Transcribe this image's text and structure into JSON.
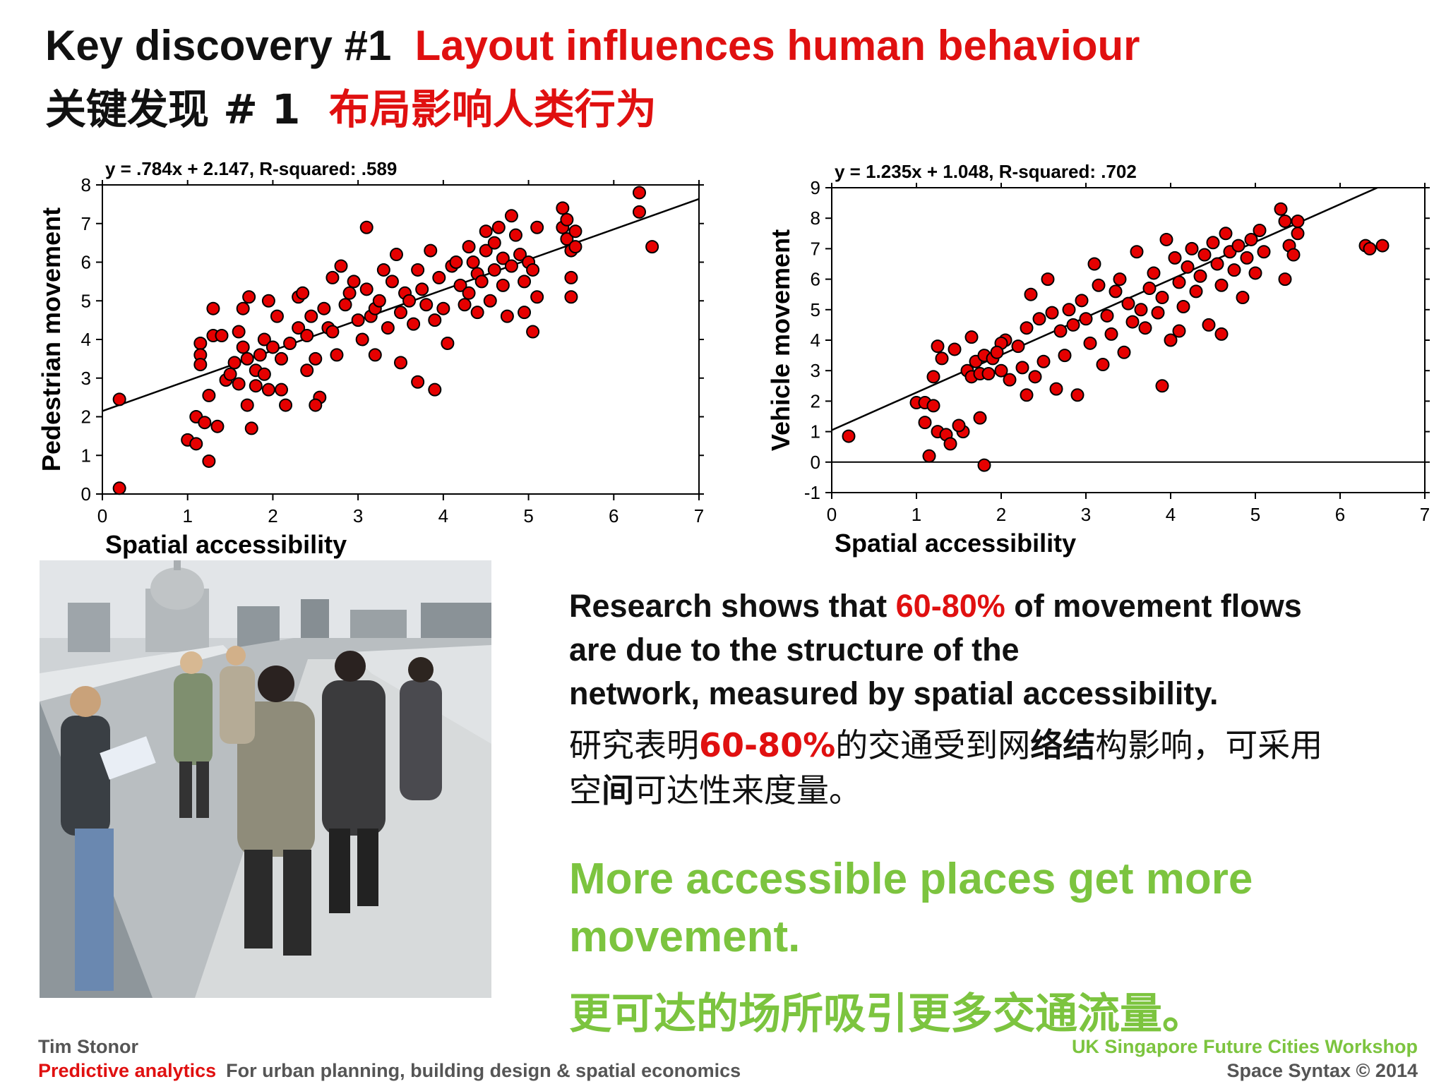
{
  "title": {
    "en_prefix": "Key discovery #1",
    "en_highlight": "Layout influences human behaviour",
    "zh_prefix": "关键发现 # 1",
    "zh_highlight": "布局影响人类行为"
  },
  "colors": {
    "accent_red": "#e01010",
    "accent_green": "#7cc43f",
    "marker_fill": "#e60000",
    "marker_edge": "#000000"
  },
  "chart_data": [
    {
      "type": "scatter",
      "title": "y = .784x + 2.147, R-squared: .589",
      "xlabel": "Spatial accessibility",
      "ylabel": "Pedestrian movement",
      "xlim": [
        0,
        7
      ],
      "ylim": [
        0,
        8
      ],
      "xticks": [
        0,
        1,
        2,
        3,
        4,
        5,
        6,
        7
      ],
      "yticks": [
        0,
        1,
        2,
        3,
        4,
        5,
        6,
        7,
        8
      ],
      "fit": {
        "slope": 0.784,
        "intercept": 2.147
      },
      "points": [
        [
          0.2,
          2.45
        ],
        [
          0.2,
          0.15
        ],
        [
          1.0,
          1.4
        ],
        [
          1.1,
          2.0
        ],
        [
          1.1,
          1.3
        ],
        [
          1.15,
          3.9
        ],
        [
          1.15,
          3.6
        ],
        [
          1.15,
          3.35
        ],
        [
          1.2,
          1.85
        ],
        [
          1.25,
          2.55
        ],
        [
          1.25,
          0.85
        ],
        [
          1.3,
          4.1
        ],
        [
          1.3,
          4.8
        ],
        [
          1.35,
          1.75
        ],
        [
          1.4,
          4.1
        ],
        [
          1.45,
          2.95
        ],
        [
          1.5,
          3.1
        ],
        [
          1.55,
          3.4
        ],
        [
          1.6,
          4.2
        ],
        [
          1.6,
          2.85
        ],
        [
          1.65,
          3.8
        ],
        [
          1.65,
          4.8
        ],
        [
          1.7,
          2.3
        ],
        [
          1.7,
          3.5
        ],
        [
          1.72,
          5.1
        ],
        [
          1.75,
          1.7
        ],
        [
          1.8,
          3.2
        ],
        [
          1.8,
          2.8
        ],
        [
          1.85,
          3.6
        ],
        [
          1.9,
          4.0
        ],
        [
          1.9,
          3.1
        ],
        [
          1.95,
          2.7
        ],
        [
          1.95,
          5.0
        ],
        [
          2.0,
          3.8
        ],
        [
          2.05,
          4.6
        ],
        [
          2.1,
          3.5
        ],
        [
          2.2,
          3.9
        ],
        [
          2.3,
          4.3
        ],
        [
          2.3,
          5.1
        ],
        [
          2.35,
          5.2
        ],
        [
          2.4,
          4.1
        ],
        [
          2.4,
          3.2
        ],
        [
          2.45,
          4.6
        ],
        [
          2.5,
          3.5
        ],
        [
          2.55,
          2.5
        ],
        [
          2.6,
          4.8
        ],
        [
          2.65,
          4.3
        ],
        [
          2.7,
          5.6
        ],
        [
          2.7,
          4.2
        ],
        [
          2.75,
          3.6
        ],
        [
          2.8,
          5.9
        ],
        [
          2.85,
          4.9
        ],
        [
          2.9,
          5.2
        ],
        [
          2.95,
          5.5
        ],
        [
          3.0,
          4.5
        ],
        [
          3.05,
          4.0
        ],
        [
          3.1,
          6.9
        ],
        [
          3.1,
          5.3
        ],
        [
          3.15,
          4.6
        ],
        [
          3.2,
          3.6
        ],
        [
          3.2,
          4.8
        ],
        [
          3.25,
          5.0
        ],
        [
          3.3,
          5.8
        ],
        [
          3.35,
          4.3
        ],
        [
          3.4,
          5.5
        ],
        [
          3.45,
          6.2
        ],
        [
          3.5,
          4.7
        ],
        [
          3.5,
          3.4
        ],
        [
          3.55,
          5.2
        ],
        [
          3.6,
          5.0
        ],
        [
          3.65,
          4.4
        ],
        [
          3.7,
          5.8
        ],
        [
          3.75,
          5.3
        ],
        [
          3.8,
          4.9
        ],
        [
          3.85,
          6.3
        ],
        [
          3.9,
          4.5
        ],
        [
          3.95,
          5.6
        ],
        [
          4.0,
          4.8
        ],
        [
          4.05,
          3.9
        ],
        [
          4.1,
          5.9
        ],
        [
          4.15,
          6.0
        ],
        [
          4.2,
          5.4
        ],
        [
          4.25,
          4.9
        ],
        [
          4.3,
          5.2
        ],
        [
          4.3,
          6.4
        ],
        [
          4.35,
          6.0
        ],
        [
          4.4,
          5.7
        ],
        [
          4.4,
          4.7
        ],
        [
          4.45,
          5.5
        ],
        [
          4.5,
          6.3
        ],
        [
          4.5,
          6.8
        ],
        [
          4.55,
          5.0
        ],
        [
          4.6,
          5.8
        ],
        [
          4.6,
          6.5
        ],
        [
          4.65,
          6.9
        ],
        [
          4.7,
          5.4
        ],
        [
          4.7,
          6.1
        ],
        [
          4.75,
          4.6
        ],
        [
          4.8,
          5.9
        ],
        [
          4.8,
          7.2
        ],
        [
          4.85,
          6.7
        ],
        [
          4.9,
          6.2
        ],
        [
          4.95,
          5.5
        ],
        [
          4.95,
          4.7
        ],
        [
          5.0,
          6.0
        ],
        [
          5.05,
          5.8
        ],
        [
          5.05,
          4.2
        ],
        [
          5.1,
          6.9
        ],
        [
          5.1,
          5.1
        ],
        [
          5.4,
          7.4
        ],
        [
          5.4,
          6.9
        ],
        [
          5.45,
          7.1
        ],
        [
          5.45,
          6.6
        ],
        [
          5.5,
          6.3
        ],
        [
          5.5,
          5.6
        ],
        [
          5.5,
          5.1
        ],
        [
          5.55,
          6.8
        ],
        [
          5.55,
          6.4
        ],
        [
          6.3,
          7.8
        ],
        [
          6.3,
          7.3
        ],
        [
          6.45,
          6.4
        ],
        [
          3.7,
          2.9
        ],
        [
          3.9,
          2.7
        ],
        [
          2.5,
          2.3
        ],
        [
          2.1,
          2.7
        ],
        [
          2.15,
          2.3
        ]
      ]
    },
    {
      "type": "scatter",
      "title": "y = 1.235x + 1.048, R-squared: .702",
      "xlabel": "Spatial accessibility",
      "ylabel": "Vehicle movement",
      "xlim": [
        0,
        7
      ],
      "ylim": [
        -1,
        9
      ],
      "xticks": [
        0,
        1,
        2,
        3,
        4,
        5,
        6,
        7
      ],
      "yticks": [
        -1,
        0,
        1,
        2,
        3,
        4,
        5,
        6,
        7,
        8,
        9
      ],
      "fit": {
        "slope": 1.235,
        "intercept": 1.048
      },
      "points": [
        [
          0.2,
          0.85
        ],
        [
          1.0,
          1.95
        ],
        [
          1.1,
          1.3
        ],
        [
          1.1,
          1.95
        ],
        [
          1.15,
          0.2
        ],
        [
          1.2,
          1.85
        ],
        [
          1.2,
          2.8
        ],
        [
          1.25,
          3.8
        ],
        [
          1.25,
          1.0
        ],
        [
          1.3,
          3.4
        ],
        [
          1.35,
          0.9
        ],
        [
          1.4,
          0.6
        ],
        [
          1.45,
          3.7
        ],
        [
          1.55,
          1.0
        ],
        [
          1.6,
          3.0
        ],
        [
          1.65,
          2.8
        ],
        [
          1.65,
          4.1
        ],
        [
          1.7,
          3.3
        ],
        [
          1.75,
          2.9
        ],
        [
          1.75,
          1.45
        ],
        [
          1.8,
          -0.1
        ],
        [
          1.8,
          3.5
        ],
        [
          1.85,
          2.9
        ],
        [
          1.9,
          3.4
        ],
        [
          2.0,
          3.0
        ],
        [
          2.05,
          4.0
        ],
        [
          2.1,
          2.7
        ],
        [
          2.2,
          3.8
        ],
        [
          2.3,
          2.2
        ],
        [
          2.3,
          4.4
        ],
        [
          2.35,
          5.5
        ],
        [
          2.4,
          2.8
        ],
        [
          2.45,
          4.7
        ],
        [
          2.5,
          3.3
        ],
        [
          2.55,
          6.0
        ],
        [
          2.6,
          4.9
        ],
        [
          2.65,
          2.4
        ],
        [
          2.7,
          4.3
        ],
        [
          2.75,
          3.5
        ],
        [
          2.8,
          5.0
        ],
        [
          2.85,
          4.5
        ],
        [
          2.9,
          2.2
        ],
        [
          2.95,
          5.3
        ],
        [
          3.0,
          4.7
        ],
        [
          3.05,
          3.9
        ],
        [
          3.1,
          6.5
        ],
        [
          3.15,
          5.8
        ],
        [
          3.2,
          3.2
        ],
        [
          3.25,
          4.8
        ],
        [
          3.3,
          4.2
        ],
        [
          3.35,
          5.6
        ],
        [
          3.4,
          6.0
        ],
        [
          3.45,
          3.6
        ],
        [
          3.5,
          5.2
        ],
        [
          3.55,
          4.6
        ],
        [
          3.6,
          6.9
        ],
        [
          3.65,
          5.0
        ],
        [
          3.7,
          4.4
        ],
        [
          3.75,
          5.7
        ],
        [
          3.8,
          6.2
        ],
        [
          3.85,
          4.9
        ],
        [
          3.9,
          5.4
        ],
        [
          3.95,
          7.3
        ],
        [
          4.0,
          4.0
        ],
        [
          4.05,
          6.7
        ],
        [
          4.1,
          5.9
        ],
        [
          4.15,
          5.1
        ],
        [
          4.2,
          6.4
        ],
        [
          4.25,
          7.0
        ],
        [
          4.3,
          5.6
        ],
        [
          4.35,
          6.1
        ],
        [
          4.4,
          6.8
        ],
        [
          4.45,
          4.5
        ],
        [
          4.5,
          7.2
        ],
        [
          4.55,
          6.5
        ],
        [
          4.6,
          5.8
        ],
        [
          4.65,
          7.5
        ],
        [
          4.7,
          6.9
        ],
        [
          4.75,
          6.3
        ],
        [
          4.8,
          7.1
        ],
        [
          4.85,
          5.4
        ],
        [
          4.9,
          6.7
        ],
        [
          4.95,
          7.3
        ],
        [
          5.0,
          6.2
        ],
        [
          5.05,
          7.6
        ],
        [
          5.1,
          6.9
        ],
        [
          5.3,
          8.3
        ],
        [
          5.35,
          7.9
        ],
        [
          5.4,
          7.1
        ],
        [
          5.45,
          6.8
        ],
        [
          5.5,
          7.9
        ],
        [
          5.5,
          7.5
        ],
        [
          5.35,
          6.0
        ],
        [
          6.3,
          7.1
        ],
        [
          6.5,
          7.1
        ],
        [
          6.35,
          7.0
        ],
        [
          3.9,
          2.5
        ],
        [
          4.1,
          4.3
        ],
        [
          4.6,
          4.2
        ],
        [
          2.0,
          3.9
        ],
        [
          2.25,
          3.1
        ],
        [
          1.5,
          1.2
        ],
        [
          1.95,
          3.6
        ]
      ]
    }
  ],
  "research": {
    "en_1": "Research shows that ",
    "en_pct": "60-80%",
    "en_2": " of movement flows",
    "en_3": "are due to the structure of the",
    "en_4": "network, measured by spatial accessibility.",
    "zh_1": "研究表明",
    "zh_pct": "60-80%",
    "zh_2": "的交通受到网",
    "zh_3": "络结",
    "zh_4": "构影响，可采用",
    "zh_5": "空",
    "zh_6": "间",
    "zh_7": "可达性来度量。"
  },
  "conclusion": {
    "en_1": "More accessible places get more",
    "en_2": "movement.",
    "zh": "更可达的场所吸引更多交通流量。"
  },
  "footer": {
    "author": "Tim Stonor",
    "product": "Predictive analytics",
    "product_desc": "For urban planning, building design & spatial economics",
    "workshop": "UK Singapore Future Cities Workshop",
    "copyright": "Space Syntax ©  2014"
  }
}
